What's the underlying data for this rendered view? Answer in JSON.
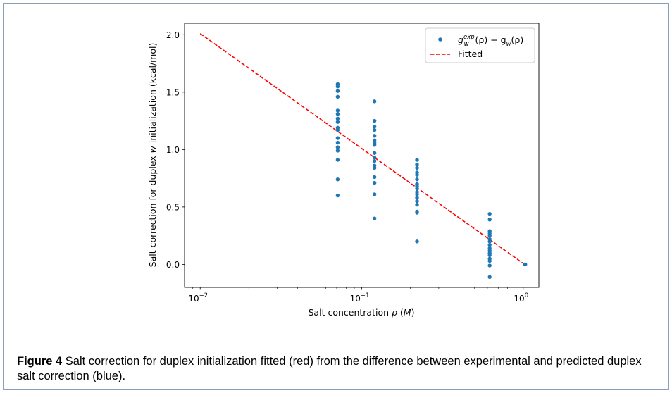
{
  "chart_data": {
    "type": "scatter",
    "xscale": "log",
    "xlim": [
      0.008,
      1.25
    ],
    "ylim": [
      -0.2,
      2.1
    ],
    "xticks": [
      {
        "value": 0.01,
        "base": "10",
        "exp": "−2"
      },
      {
        "value": 0.1,
        "base": "10",
        "exp": "−1"
      },
      {
        "value": 1,
        "base": "10",
        "exp": "0"
      }
    ],
    "yticks": [
      {
        "value": 0.0,
        "label": "0.0"
      },
      {
        "value": 0.5,
        "label": "0.5"
      },
      {
        "value": 1.0,
        "label": "1.0"
      },
      {
        "value": 1.5,
        "label": "1.5"
      },
      {
        "value": 2.0,
        "label": "2.0"
      }
    ],
    "xlabel": {
      "text": "Salt concentration ",
      "sym": "ρ",
      "rest": " (",
      "unit": "M",
      "close": ")"
    },
    "ylabel": {
      "pre": "Salt correction for duplex ",
      "sym": "w",
      "post": " initialization (kcal/mol)"
    },
    "legend_position": "upper-right",
    "colors": {
      "points": "#1f77b4",
      "fit": "#ff0000"
    },
    "series": [
      {
        "name": "g_w^exp(ρ) − g_w(ρ)",
        "style": "points",
        "points": [
          {
            "x": 0.071,
            "y": 1.57
          },
          {
            "x": 0.071,
            "y": 1.55
          },
          {
            "x": 0.071,
            "y": 1.51
          },
          {
            "x": 0.071,
            "y": 1.46
          },
          {
            "x": 0.071,
            "y": 1.34
          },
          {
            "x": 0.071,
            "y": 1.31
          },
          {
            "x": 0.071,
            "y": 1.27
          },
          {
            "x": 0.071,
            "y": 1.24
          },
          {
            "x": 0.071,
            "y": 1.19
          },
          {
            "x": 0.071,
            "y": 1.17
          },
          {
            "x": 0.071,
            "y": 1.1
          },
          {
            "x": 0.071,
            "y": 1.06
          },
          {
            "x": 0.071,
            "y": 1.02
          },
          {
            "x": 0.071,
            "y": 0.99
          },
          {
            "x": 0.071,
            "y": 0.91
          },
          {
            "x": 0.071,
            "y": 0.74
          },
          {
            "x": 0.071,
            "y": 0.6
          },
          {
            "x": 0.12,
            "y": 1.42
          },
          {
            "x": 0.12,
            "y": 1.25
          },
          {
            "x": 0.12,
            "y": 1.2
          },
          {
            "x": 0.12,
            "y": 1.17
          },
          {
            "x": 0.12,
            "y": 1.12
          },
          {
            "x": 0.12,
            "y": 1.08
          },
          {
            "x": 0.12,
            "y": 1.06
          },
          {
            "x": 0.12,
            "y": 1.04
          },
          {
            "x": 0.12,
            "y": 0.97
          },
          {
            "x": 0.12,
            "y": 0.93
          },
          {
            "x": 0.12,
            "y": 0.9
          },
          {
            "x": 0.12,
            "y": 0.86
          },
          {
            "x": 0.12,
            "y": 0.84
          },
          {
            "x": 0.12,
            "y": 0.76
          },
          {
            "x": 0.12,
            "y": 0.71
          },
          {
            "x": 0.12,
            "y": 0.61
          },
          {
            "x": 0.12,
            "y": 0.4
          },
          {
            "x": 0.22,
            "y": 0.91
          },
          {
            "x": 0.22,
            "y": 0.87
          },
          {
            "x": 0.22,
            "y": 0.84
          },
          {
            "x": 0.22,
            "y": 0.8
          },
          {
            "x": 0.22,
            "y": 0.78
          },
          {
            "x": 0.22,
            "y": 0.74
          },
          {
            "x": 0.22,
            "y": 0.7
          },
          {
            "x": 0.22,
            "y": 0.68
          },
          {
            "x": 0.22,
            "y": 0.66
          },
          {
            "x": 0.22,
            "y": 0.63
          },
          {
            "x": 0.22,
            "y": 0.61
          },
          {
            "x": 0.22,
            "y": 0.58
          },
          {
            "x": 0.22,
            "y": 0.55
          },
          {
            "x": 0.22,
            "y": 0.52
          },
          {
            "x": 0.22,
            "y": 0.46
          },
          {
            "x": 0.22,
            "y": 0.45
          },
          {
            "x": 0.22,
            "y": 0.2
          },
          {
            "x": 0.62,
            "y": 0.44
          },
          {
            "x": 0.62,
            "y": 0.39
          },
          {
            "x": 0.62,
            "y": 0.29
          },
          {
            "x": 0.62,
            "y": 0.27
          },
          {
            "x": 0.62,
            "y": 0.25
          },
          {
            "x": 0.62,
            "y": 0.22
          },
          {
            "x": 0.62,
            "y": 0.2
          },
          {
            "x": 0.62,
            "y": 0.17
          },
          {
            "x": 0.62,
            "y": 0.14
          },
          {
            "x": 0.62,
            "y": 0.12
          },
          {
            "x": 0.62,
            "y": 0.1
          },
          {
            "x": 0.62,
            "y": 0.08
          },
          {
            "x": 0.62,
            "y": 0.05
          },
          {
            "x": 0.62,
            "y": 0.03
          },
          {
            "x": 0.62,
            "y": -0.01
          },
          {
            "x": 0.62,
            "y": -0.11
          },
          {
            "x": 1.02,
            "y": 0.0
          },
          {
            "x": 1.03,
            "y": 0.0
          }
        ]
      },
      {
        "name": "Fitted",
        "style": "dashed-line",
        "points": [
          {
            "x": 0.01,
            "y": 2.01
          },
          {
            "x": 1.02,
            "y": 0.0
          }
        ]
      }
    ]
  },
  "legend": {
    "series1": {
      "g": "g",
      "sup": "exp",
      "sub": "w",
      "mid": "(ρ) − g",
      "sub2": "w",
      "end": "(ρ)"
    },
    "series2": "Fitted"
  },
  "caption": {
    "label": "Figure 4",
    "text": " Salt correction for duplex initialization fitted (red) from the difference between experimental and predicted duplex salt correction (blue)."
  }
}
